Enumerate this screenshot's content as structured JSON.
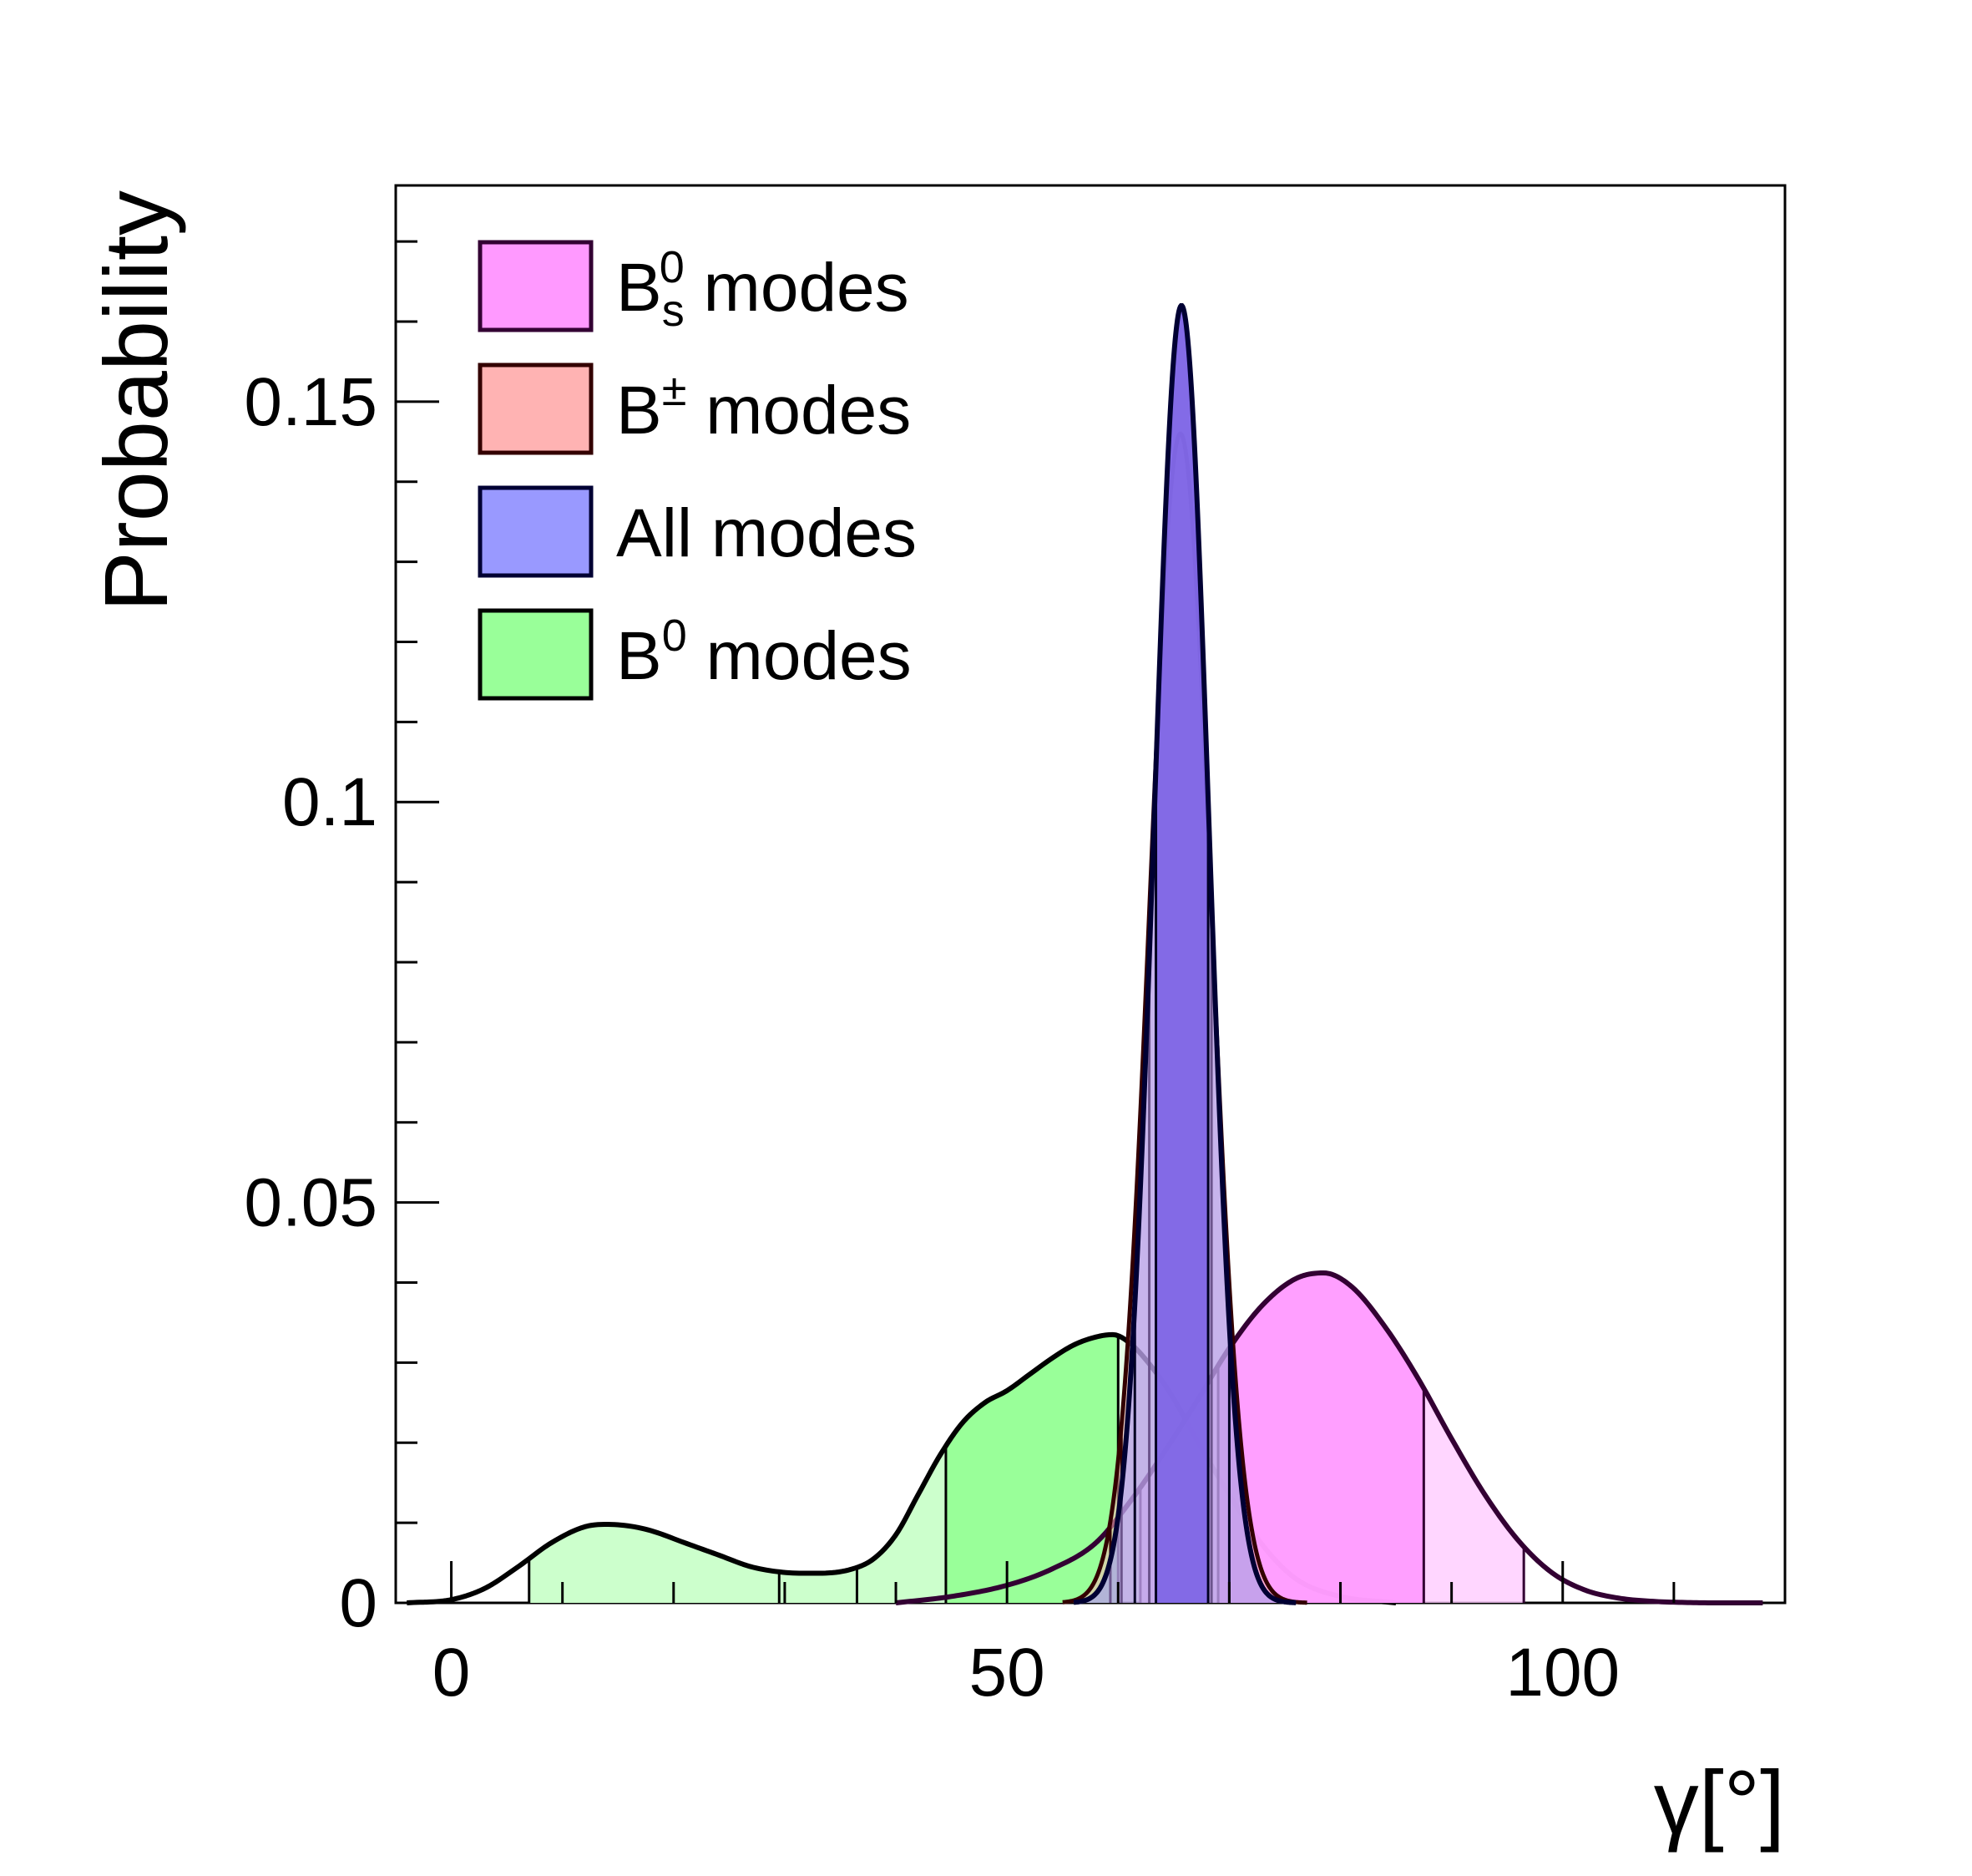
{
  "chart_data": {
    "type": "area",
    "title": "",
    "xlabel": "γ[°]",
    "ylabel": "Probability",
    "xlim": [
      -5,
      120
    ],
    "ylim": [
      0,
      0.177
    ],
    "x_ticks": [
      0,
      50,
      100
    ],
    "x_tick_labels": [
      "0",
      "50",
      "100"
    ],
    "y_ticks": [
      0,
      0.05,
      0.1,
      0.15
    ],
    "y_tick_labels": [
      "0",
      "0.05",
      "0.1",
      "0.15"
    ],
    "grid": false,
    "legend_position": "top-left",
    "series": [
      {
        "key": "b0",
        "name": "B⁰ modes",
        "label_base": "B",
        "label_sup": "0",
        "label_sub": "",
        "label_rest": " modes",
        "fill": "#99ff99",
        "fill_light": "#ccffcc",
        "stroke": "#000000",
        "x": [
          -4,
          0,
          3,
          6,
          9,
          12,
          14,
          16,
          18,
          21,
          24,
          27,
          30,
          33,
          36,
          38,
          40,
          42,
          44,
          46,
          48,
          50,
          52,
          54,
          56,
          58,
          59.5,
          61,
          63,
          65,
          67,
          70,
          73,
          76,
          80,
          85
        ],
        "values": [
          0,
          0.0004,
          0.0018,
          0.0045,
          0.0075,
          0.0095,
          0.0098,
          0.0096,
          0.009,
          0.0075,
          0.006,
          0.0045,
          0.0038,
          0.0037,
          0.0042,
          0.0055,
          0.0085,
          0.0135,
          0.0185,
          0.0225,
          0.025,
          0.0265,
          0.0285,
          0.0305,
          0.0322,
          0.0332,
          0.0335,
          0.0325,
          0.0295,
          0.0255,
          0.0205,
          0.0135,
          0.0072,
          0.003,
          0.0008,
          0
        ],
        "interval_1sigma": [
          44.5,
          60
        ],
        "interval_2sigma": [
          7,
          36.5
        ],
        "ci_markers": [
          7,
          29.5,
          36.5,
          44.5,
          60
        ]
      },
      {
        "key": "bs",
        "name": "B_s⁰ modes",
        "label_base": "B",
        "label_sup": "0",
        "label_sub": "s",
        "label_rest": " modes",
        "fill": "#ff99ff",
        "fill_light": "#ffccff",
        "stroke": "#330033",
        "x": [
          40,
          45,
          50,
          54,
          58,
          61,
          64,
          67,
          70,
          73,
          76,
          78.5,
          81,
          84,
          87,
          90,
          93,
          96,
          99,
          102,
          105,
          108,
          111,
          114,
          118
        ],
        "values": [
          0,
          0.0008,
          0.0022,
          0.0042,
          0.0075,
          0.0125,
          0.0185,
          0.025,
          0.0318,
          0.0372,
          0.0405,
          0.0412,
          0.0395,
          0.0345,
          0.028,
          0.0205,
          0.0135,
          0.0078,
          0.0038,
          0.0016,
          0.0006,
          0.0002,
          5e-05,
          0,
          0
        ],
        "interval_1sigma": [
          69,
          87.5
        ],
        "interval_2sigma": [
          62,
          96.5
        ],
        "ci_markers": [
          62,
          69,
          87.5,
          96.5
        ]
      },
      {
        "key": "bpm",
        "name": "B± modes",
        "label_base": "B",
        "label_sup": "±",
        "label_sub": "",
        "label_rest": " modes",
        "fill": "#ffb3b3",
        "stroke": "#330000",
        "mean": 65.6,
        "sigma": 2.73,
        "peak": 0.146,
        "x_range": [
          55,
          77
        ],
        "ci_markers": [
          59.3,
          60.3,
          62.8,
          68.4
        ]
      },
      {
        "key": "all",
        "name": "All modes",
        "label_base": "All modes",
        "label_sup": "",
        "label_sub": "",
        "label_rest": "",
        "fill": "#9999ff",
        "fill_light": "#8066e6",
        "stroke": "#000033",
        "mean": 65.7,
        "sigma": 2.45,
        "peak": 0.162,
        "x_range": [
          56,
          76
        ],
        "interval_1sigma": [
          63.4,
          68.1
        ],
        "ci_markers": [
          61.5,
          63.4,
          68.1,
          70
        ]
      }
    ],
    "legend_order": [
      "bs",
      "bpm",
      "all",
      "b0"
    ]
  }
}
